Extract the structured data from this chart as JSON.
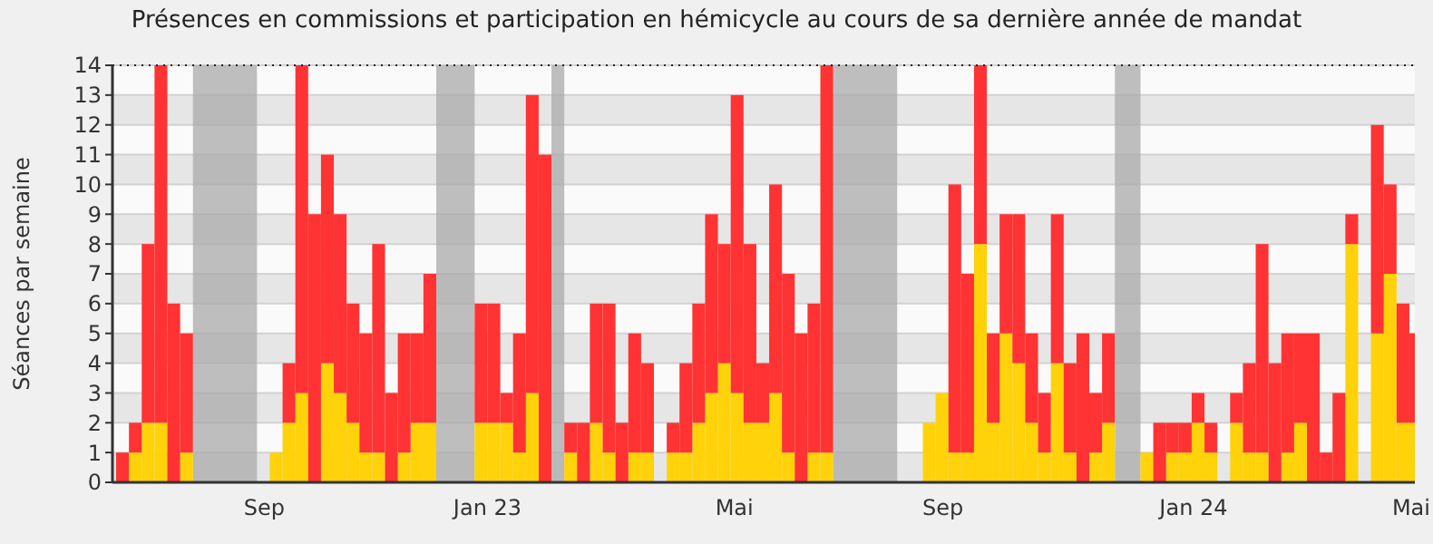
{
  "chart_data": {
    "type": "bar",
    "stacked": true,
    "title": "Présences en commissions et participation en hémicycle au cours de sa dernière année de mandat",
    "ylabel": "Séances par semaine",
    "x": [
      "2022-06-13",
      "2022-06-20",
      "2022-06-27",
      "2022-07-04",
      "2022-07-11",
      "2022-07-18",
      "2022-07-25",
      "2022-08-01",
      "2022-08-08",
      "2022-08-15",
      "2022-08-22",
      "2022-08-29",
      "2022-09-05",
      "2022-09-12",
      "2022-09-19",
      "2022-09-26",
      "2022-10-03",
      "2022-10-10",
      "2022-10-17",
      "2022-10-24",
      "2022-10-31",
      "2022-11-07",
      "2022-11-14",
      "2022-11-21",
      "2022-11-28",
      "2022-12-05",
      "2022-12-12",
      "2022-12-19",
      "2022-12-26",
      "2023-01-02",
      "2023-01-09",
      "2023-01-16",
      "2023-01-23",
      "2023-01-30",
      "2023-02-06",
      "2023-02-13",
      "2023-02-20",
      "2023-02-27",
      "2023-03-06",
      "2023-03-13",
      "2023-03-20",
      "2023-03-27",
      "2023-04-03",
      "2023-04-10",
      "2023-04-17",
      "2023-04-24",
      "2023-05-01",
      "2023-05-08",
      "2023-05-15",
      "2023-05-22",
      "2023-05-29",
      "2023-06-05",
      "2023-06-12",
      "2023-06-19",
      "2023-06-26",
      "2023-07-03",
      "2023-07-10",
      "2023-07-17",
      "2023-07-24",
      "2023-07-31",
      "2023-08-07",
      "2023-08-14",
      "2023-08-21",
      "2023-08-28",
      "2023-09-04",
      "2023-09-11",
      "2023-09-18",
      "2023-09-25",
      "2023-10-02",
      "2023-10-09",
      "2023-10-16",
      "2023-10-23",
      "2023-10-30",
      "2023-11-06",
      "2023-11-13",
      "2023-11-20",
      "2023-11-27",
      "2023-12-04",
      "2023-12-11",
      "2023-12-18",
      "2023-12-25",
      "2024-01-01",
      "2024-01-08",
      "2024-01-15",
      "2024-01-22",
      "2024-01-29",
      "2024-02-05",
      "2024-02-12",
      "2024-02-19",
      "2024-02-26",
      "2024-03-04",
      "2024-03-11",
      "2024-03-18",
      "2024-03-25",
      "2024-04-01",
      "2024-04-08",
      "2024-04-15",
      "2024-04-22",
      "2024-04-29",
      "2024-05-06",
      "2024-05-13",
      "2024-05-20"
    ],
    "series": [
      {
        "color": "#ffd20a",
        "values": [
          0,
          1,
          2,
          2,
          0,
          1,
          0,
          0,
          0,
          0,
          0,
          0,
          1,
          2,
          3,
          0,
          4,
          3,
          2,
          1,
          1,
          0,
          1,
          2,
          2,
          0,
          0,
          0,
          2,
          2,
          2,
          1,
          3,
          0,
          0,
          1,
          0,
          2,
          1,
          0,
          1,
          1,
          0,
          1,
          1,
          2,
          3,
          4,
          3,
          2,
          2,
          3,
          1,
          0,
          1,
          1,
          0,
          0,
          0,
          0,
          0,
          0,
          0,
          2,
          3,
          1,
          1,
          8,
          2,
          5,
          4,
          2,
          1,
          4,
          1,
          0,
          1,
          2,
          0,
          0,
          1,
          0,
          1,
          1,
          2,
          1,
          0,
          2,
          1,
          1,
          0,
          1,
          2,
          0,
          0,
          0,
          8,
          0,
          5,
          7,
          2,
          2
        ]
      },
      {
        "color": "#ff3333",
        "values": [
          1,
          1,
          6,
          12,
          6,
          4,
          0,
          0,
          0,
          0,
          0,
          0,
          0,
          2,
          11,
          9,
          7,
          6,
          4,
          4,
          7,
          3,
          4,
          3,
          5,
          0,
          0,
          0,
          4,
          4,
          1,
          4,
          10,
          11,
          0,
          1,
          2,
          4,
          5,
          2,
          4,
          3,
          0,
          1,
          3,
          4,
          6,
          4,
          10,
          6,
          2,
          7,
          6,
          5,
          5,
          13,
          0,
          0,
          0,
          0,
          0,
          0,
          0,
          0,
          0,
          9,
          6,
          6,
          3,
          4,
          5,
          3,
          2,
          5,
          3,
          5,
          2,
          3,
          0,
          0,
          0,
          2,
          1,
          1,
          1,
          1,
          0,
          1,
          3,
          7,
          4,
          4,
          3,
          5,
          1,
          3,
          1,
          0,
          7,
          3,
          4,
          3
        ]
      }
    ],
    "xlim": [
      "2022-06-11",
      "2024-05-23"
    ],
    "xticks": [
      {
        "value": "2022-09-02",
        "label": "Sep"
      },
      {
        "value": "2023-01-02",
        "label": "Jan 23"
      },
      {
        "value": "2023-05-17",
        "label": "Mai"
      },
      {
        "value": "2023-09-08",
        "label": "Sep"
      },
      {
        "value": "2024-01-23",
        "label": "Jan 24"
      },
      {
        "value": "2024-05-21",
        "label": "Mai"
      }
    ],
    "ylim": [
      0,
      14
    ],
    "yticks": [
      0,
      1,
      2,
      3,
      4,
      5,
      6,
      7,
      8,
      9,
      10,
      11,
      12,
      13,
      14
    ],
    "grid": "y",
    "bands": [
      {
        "axis": "x",
        "from": "2022-07-25",
        "to": "2022-08-29",
        "color": "#aaaaaa"
      },
      {
        "axis": "x",
        "from": "2022-12-05",
        "to": "2022-12-26",
        "color": "#aaaaaa"
      },
      {
        "axis": "x",
        "from": "2023-02-06",
        "to": "2023-02-13",
        "color": "#aaaaaa"
      },
      {
        "axis": "x",
        "from": "2023-07-10",
        "to": "2023-08-14",
        "color": "#aaaaaa"
      },
      {
        "axis": "x",
        "from": "2023-12-11",
        "to": "2023-12-25",
        "color": "#aaaaaa"
      }
    ]
  }
}
